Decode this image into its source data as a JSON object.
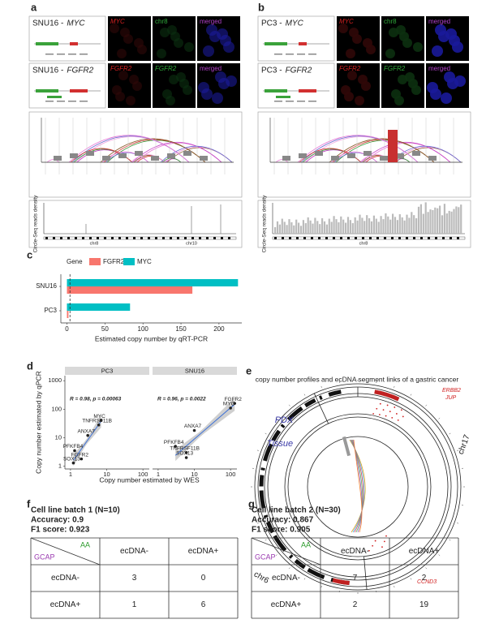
{
  "panel_labels": [
    "a",
    "b",
    "c",
    "d",
    "e",
    "f",
    "g"
  ],
  "panel_a": {
    "rows": [
      {
        "sample": "SNU16 -",
        "gene": "MYC",
        "channels": [
          "MYC",
          "chr8",
          "merged"
        ]
      },
      {
        "sample": "SNU16 -",
        "gene": "FGFR2",
        "channels": [
          "FGFR2",
          "FGFR2",
          "merged"
        ]
      }
    ],
    "density_ylabel": "Circle-Seq reads density",
    "density_xlabels": [
      "chr8",
      "chr10"
    ]
  },
  "panel_b": {
    "rows": [
      {
        "sample": "PC3 -",
        "gene": "MYC",
        "channels": [
          "MYC",
          "chr8",
          "merged"
        ]
      },
      {
        "sample": "PC3 -",
        "gene": "FGFR2",
        "channels": [
          "FGFR2",
          "FGFR2",
          "merged"
        ]
      }
    ],
    "density_ylabel": "Circle-Seq reads density",
    "density_xlabels": [
      "chr8"
    ]
  },
  "chart_data": [
    {
      "type": "bar",
      "orientation": "horizontal",
      "legend_title": "Gene",
      "categories": [
        "SNU16",
        "PC3"
      ],
      "series": [
        {
          "name": "FGFR2",
          "color": "#f8766d",
          "values": [
            165,
            2
          ]
        },
        {
          "name": "MYC",
          "color": "#00bfc4",
          "values": [
            225,
            83
          ]
        }
      ],
      "reference_line": 4,
      "xlim": [
        -8,
        230
      ],
      "xticks": [
        0,
        50,
        100,
        150,
        200
      ],
      "xlabel": "Estimated copy number by qRT-PCR"
    },
    {
      "type": "scatter",
      "log_scale": true,
      "xlabel": "Copy number estimated by WES",
      "ylabel": "Copy number estimated by qPCR",
      "xlim": [
        0.7,
        150
      ],
      "ylim": [
        0.8,
        1500
      ],
      "xticks": [
        1,
        10,
        100
      ],
      "yticks": [
        1,
        10,
        100,
        1000
      ],
      "point_color": "#222222",
      "fit_color": "#3a6fd8",
      "facets": [
        {
          "title": "PC3",
          "annotation": "R = 0.98, p = 0.00063",
          "points": [
            {
              "label": "MYC",
              "x": 7,
              "y": 40
            },
            {
              "label": "TNFRSF11B",
              "x": 6,
              "y": 28
            },
            {
              "label": "ANXA7",
              "x": 3,
              "y": 12
            },
            {
              "label": "PFKFB4",
              "x": 1.3,
              "y": 3.5
            },
            {
              "label": "FGFR2",
              "x": 2,
              "y": 1.8
            },
            {
              "label": "SOX13",
              "x": 1.2,
              "y": 1.3
            }
          ]
        },
        {
          "title": "SNU16",
          "annotation": "R = 0.96, p = 0.0022",
          "points": [
            {
              "label": "MYC",
              "x": 100,
              "y": 110
            },
            {
              "label": "FGFR2",
              "x": 130,
              "y": 160
            },
            {
              "label": "ANXA7",
              "x": 10,
              "y": 18
            },
            {
              "label": "PFKFB4",
              "x": 3,
              "y": 5
            },
            {
              "label": "TNFRSF11B",
              "x": 6,
              "y": 3
            },
            {
              "label": "SOX13",
              "x": 6,
              "y": 2
            }
          ]
        }
      ]
    }
  ],
  "panel_e": {
    "title": "copy number profiles and ecDNA segment links of a gastric cancer",
    "pdx": "PDX",
    "tissue": "Tissue",
    "chr17": "chr17",
    "chr6": "chr6",
    "erbb2": "ERBB2",
    "jup": "JUP",
    "ccnd3": "CCND3"
  },
  "tables": [
    {
      "title": "Cell line batch 1 (N=10)",
      "accuracy": "Accuracy: 0.9",
      "f1": "F1 score: 0.923",
      "corner_col": "AA",
      "corner_row": "GCAP",
      "columns": [
        "ecDNA-",
        "ecDNA+"
      ],
      "rows": [
        [
          "ecDNA-",
          3,
          0
        ],
        [
          "ecDNA+",
          1,
          6
        ]
      ]
    },
    {
      "title": "Cell line batch 2 (N=30)",
      "accuracy": "Accuracy: 0.867",
      "f1": "F1 score: 0.905",
      "corner_col": "AA",
      "corner_row": "GCAP",
      "columns": [
        "ecDNA-",
        "ecDNA+"
      ],
      "rows": [
        [
          "ecDNA-",
          7,
          2
        ],
        [
          "ecDNA+",
          2,
          19
        ]
      ]
    }
  ]
}
